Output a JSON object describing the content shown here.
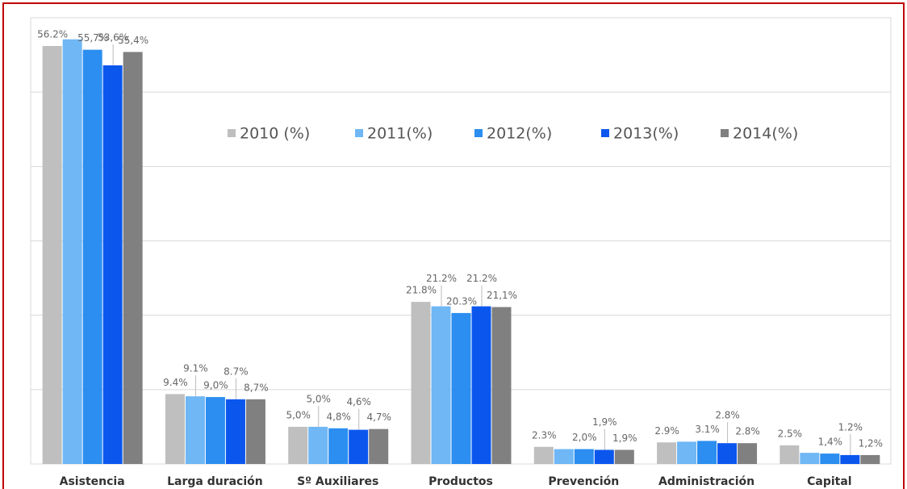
{
  "chart_data": {
    "type": "bar",
    "categories": [
      "Asistencia",
      "Larga duración",
      "Sº Auxiliares",
      "Productos",
      "Prevención",
      "Administración",
      "Capital"
    ],
    "series": [
      {
        "name": "2010 (%)",
        "color": "#bfbfbf",
        "values": [
          56.2,
          9.4,
          5.0,
          21.8,
          2.3,
          2.9,
          2.5
        ],
        "value_labels": [
          "56.2%",
          "9.4%",
          "5,0%",
          "21.8%",
          "2.3%",
          "2.9%",
          "2.5%"
        ]
      },
      {
        "name": "2011(%)",
        "color": "#6fb7f5",
        "values": [
          57.1,
          9.1,
          5.0,
          21.2,
          2.0,
          3.0,
          1.5
        ],
        "value_labels": [
          null,
          "9.1%",
          "5,0%",
          "21.2%",
          null,
          null,
          null
        ]
      },
      {
        "name": "2012(%)",
        "color": "#2b8ef0",
        "values": [
          55.7,
          9.0,
          4.8,
          20.3,
          2.0,
          3.1,
          1.4
        ],
        "value_labels": [
          "55,7%",
          "9,0%",
          "4,8%",
          "20.3%",
          "2,0%",
          "3.1%",
          "1,4%"
        ]
      },
      {
        "name": "2013(%)",
        "color": "#0b57ee",
        "values": [
          53.6,
          8.7,
          4.6,
          21.2,
          1.9,
          2.8,
          1.2
        ],
        "value_labels": [
          "53,6%",
          "8.7%",
          "4,6%",
          "21.2%",
          "1,9%",
          "2.8%",
          "1.2%"
        ]
      },
      {
        "name": "2014(%)",
        "color": "#808080",
        "values": [
          55.4,
          8.7,
          4.7,
          21.1,
          1.9,
          2.8,
          1.2
        ],
        "value_labels": [
          "55,4%",
          "8,7%",
          "4,7%",
          "21,1%",
          "1,9%",
          "2.8%",
          "1,2%"
        ]
      }
    ],
    "ylim": [
      0,
      60
    ],
    "yticks": [
      0,
      10,
      20,
      30,
      40,
      50,
      60
    ],
    "grid": true,
    "legend": "top"
  }
}
